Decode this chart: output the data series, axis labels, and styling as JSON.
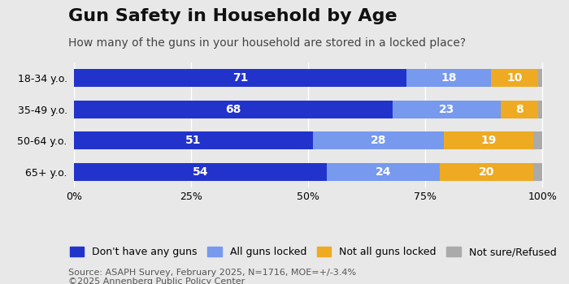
{
  "title": "Gun Safety in Household by Age",
  "subtitle": "How many of the guns in your household are stored in a locked place?",
  "source": "Source: ASAPH Survey, February 2025, N=1716, MOE=+/-3.4%\n©2025 Annenberg Public Policy Center",
  "categories": [
    "18-34 y.o.",
    "35-49 y.o.",
    "50-64 y.o.",
    "65+ y.o."
  ],
  "series": [
    {
      "label": "Don't have any guns",
      "color": "#2233CC",
      "values": [
        71,
        68,
        51,
        54
      ]
    },
    {
      "label": "All guns locked",
      "color": "#7799EE",
      "values": [
        18,
        23,
        28,
        24
      ]
    },
    {
      "label": "Not all guns locked",
      "color": "#EEAA22",
      "values": [
        10,
        8,
        19,
        20
      ]
    },
    {
      "label": "Not sure/Refused",
      "color": "#AAAAAA",
      "values": [
        1,
        1,
        2,
        2
      ]
    }
  ],
  "xticks": [
    0,
    25,
    50,
    75,
    100
  ],
  "xlim": [
    0,
    102
  ],
  "background_color": "#E8E8E8",
  "title_fontsize": 16,
  "subtitle_fontsize": 10,
  "source_fontsize": 8,
  "tick_label_fontsize": 9,
  "bar_label_fontsize": 10,
  "legend_fontsize": 9,
  "bar_height": 0.58
}
